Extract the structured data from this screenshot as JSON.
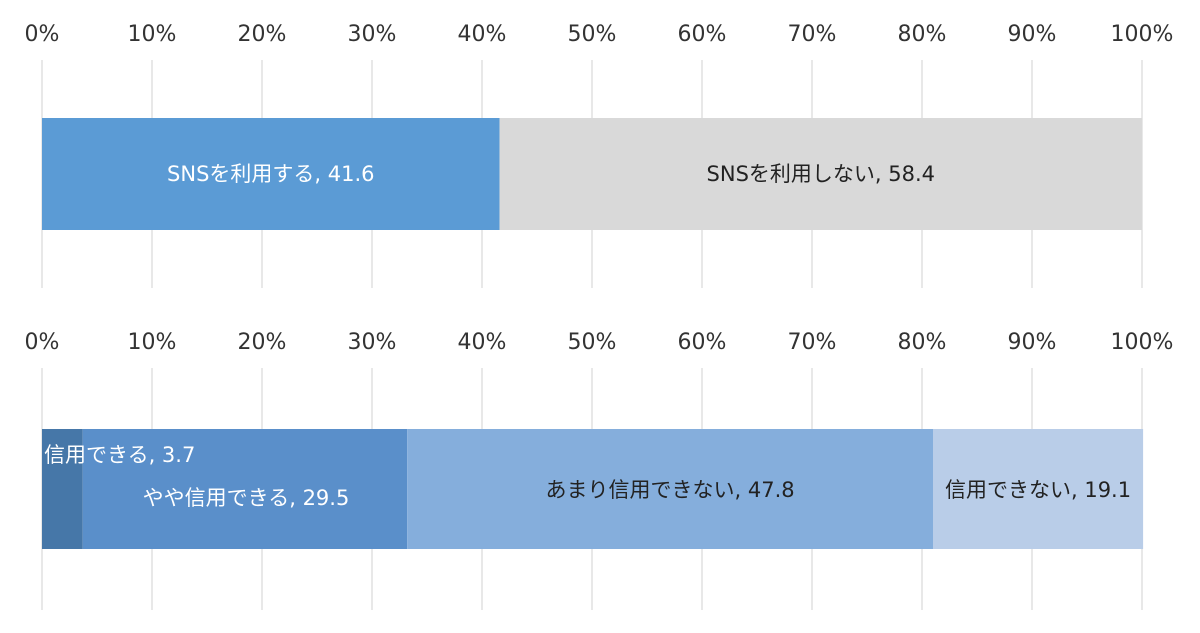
{
  "chart_data": [
    {
      "type": "bar",
      "orientation": "horizontal",
      "stacked": true,
      "xlim": [
        0,
        100
      ],
      "x_ticks": [
        "0%",
        "10%",
        "20%",
        "30%",
        "40%",
        "50%",
        "60%",
        "70%",
        "80%",
        "90%",
        "100%"
      ],
      "grid": true,
      "series": [
        {
          "label": "SNSを利用する, 41.6",
          "value": 41.6,
          "color": "#5b9bd5",
          "label_color": "#ffffff"
        },
        {
          "label": "SNSを利用しない, 58.4",
          "value": 58.4,
          "color": "#d9d9d9",
          "label_color": "#222222"
        }
      ]
    },
    {
      "type": "bar",
      "orientation": "horizontal",
      "stacked": true,
      "xlim": [
        0,
        100
      ],
      "x_ticks": [
        "0%",
        "10%",
        "20%",
        "30%",
        "40%",
        "50%",
        "60%",
        "70%",
        "80%",
        "90%",
        "100%"
      ],
      "grid": true,
      "series": [
        {
          "label": "信用できる, 3.7",
          "value": 3.7,
          "color": "#4677a8",
          "label_color": "#ffffff"
        },
        {
          "label": "やや信用できる, 29.5",
          "value": 29.5,
          "color": "#5a8fca",
          "label_color": "#ffffff"
        },
        {
          "label": "あまり信用できない, 47.8",
          "value": 47.8,
          "color": "#85aedc",
          "label_color": "#222222"
        },
        {
          "label": "信用できない, 19.1",
          "value": 19.1,
          "color": "#b9cde8",
          "label_color": "#222222"
        }
      ]
    }
  ]
}
